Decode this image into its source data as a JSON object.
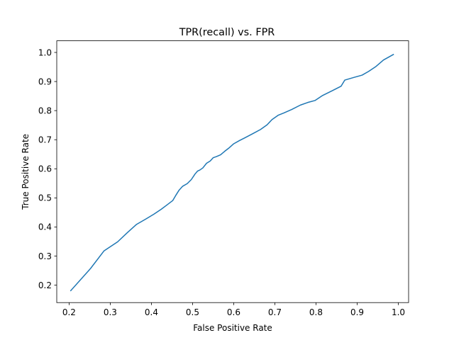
{
  "chart_data": {
    "type": "line",
    "title": "TPR(recall) vs. FPR",
    "xlabel": "False Positive Rate",
    "ylabel": "True Positive Rate",
    "xlim": [
      0.17,
      1.025
    ],
    "ylim": [
      0.14,
      1.04
    ],
    "xticks": [
      0.2,
      0.3,
      0.4,
      0.5,
      0.6,
      0.7,
      0.8,
      0.9,
      1.0
    ],
    "xtick_labels": [
      "0.2",
      "0.3",
      "0.4",
      "0.5",
      "0.6",
      "0.7",
      "0.8",
      "0.9",
      "1.0"
    ],
    "yticks": [
      0.2,
      0.3,
      0.4,
      0.5,
      0.6,
      0.7,
      0.8,
      0.9,
      1.0
    ],
    "ytick_labels": [
      "0.2",
      "0.3",
      "0.4",
      "0.5",
      "0.6",
      "0.7",
      "0.8",
      "0.9",
      "1.0"
    ],
    "grid": false,
    "legend": false,
    "line_color": "#1f77b4",
    "series": [
      {
        "x": [
          0.204,
          0.252,
          0.285,
          0.318,
          0.342,
          0.364,
          0.386,
          0.406,
          0.424,
          0.439,
          0.452,
          0.459,
          0.467,
          0.476,
          0.487,
          0.497,
          0.506,
          0.512,
          0.518,
          0.525,
          0.534,
          0.543,
          0.55,
          0.558,
          0.568,
          0.578,
          0.588,
          0.6,
          0.614,
          0.628,
          0.648,
          0.665,
          0.681,
          0.693,
          0.708,
          0.722,
          0.741,
          0.762,
          0.78,
          0.798,
          0.816,
          0.839,
          0.861,
          0.87,
          0.892,
          0.912,
          0.928,
          0.946,
          0.964,
          0.988
        ],
        "y": [
          0.181,
          0.257,
          0.318,
          0.349,
          0.381,
          0.409,
          0.427,
          0.444,
          0.461,
          0.477,
          0.491,
          0.508,
          0.526,
          0.54,
          0.549,
          0.563,
          0.582,
          0.592,
          0.596,
          0.603,
          0.619,
          0.627,
          0.638,
          0.642,
          0.648,
          0.66,
          0.671,
          0.686,
          0.697,
          0.707,
          0.722,
          0.735,
          0.751,
          0.769,
          0.784,
          0.792,
          0.804,
          0.819,
          0.828,
          0.835,
          0.852,
          0.868,
          0.884,
          0.905,
          0.914,
          0.922,
          0.935,
          0.952,
          0.974,
          0.993
        ]
      }
    ]
  }
}
